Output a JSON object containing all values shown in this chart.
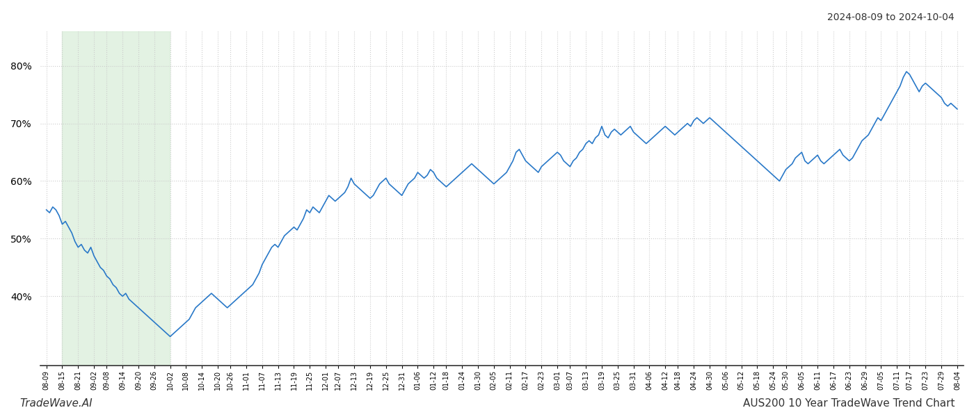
{
  "title_top_right": "2024-08-09 to 2024-10-04",
  "title_bottom_right": "AUS200 10 Year TradeWave Trend Chart",
  "title_bottom_left": "TradeWave.AI",
  "background_color": "#ffffff",
  "line_color": "#2878c8",
  "line_width": 1.2,
  "shaded_region_color": "#d4ecd4",
  "shaded_region_alpha": 0.65,
  "ylim": [
    28,
    86
  ],
  "yticks": [
    40,
    50,
    60,
    70,
    80
  ],
  "grid_color": "#cccccc",
  "grid_style": ":",
  "x_labels": [
    "08-09",
    "08-15",
    "08-21",
    "09-02",
    "09-08",
    "09-14",
    "09-20",
    "09-26",
    "10-02",
    "10-08",
    "10-14",
    "10-20",
    "10-26",
    "11-01",
    "11-07",
    "11-13",
    "11-19",
    "11-25",
    "12-01",
    "12-07",
    "12-13",
    "12-19",
    "12-25",
    "12-31",
    "01-06",
    "01-12",
    "01-18",
    "01-24",
    "01-30",
    "02-05",
    "02-11",
    "02-17",
    "02-23",
    "03-01",
    "03-07",
    "03-13",
    "03-19",
    "03-25",
    "03-31",
    "04-06",
    "04-12",
    "04-18",
    "04-24",
    "04-30",
    "05-06",
    "05-12",
    "05-18",
    "05-24",
    "05-30",
    "06-05",
    "06-11",
    "06-17",
    "06-23",
    "06-29",
    "07-05",
    "07-11",
    "07-17",
    "07-23",
    "07-29",
    "08-04"
  ],
  "shaded_start_label": "08-15",
  "shaded_end_label": "10-02",
  "values": [
    55.0,
    54.5,
    55.5,
    55.0,
    54.0,
    52.5,
    53.0,
    52.0,
    51.0,
    49.5,
    48.5,
    49.0,
    48.0,
    47.5,
    48.5,
    47.0,
    46.0,
    45.0,
    44.5,
    43.5,
    43.0,
    42.0,
    41.5,
    40.5,
    40.0,
    40.5,
    39.5,
    39.0,
    38.5,
    38.0,
    37.5,
    37.0,
    36.5,
    36.0,
    35.5,
    35.0,
    34.5,
    34.0,
    33.5,
    33.0,
    33.5,
    34.0,
    34.5,
    35.0,
    35.5,
    36.0,
    37.0,
    38.0,
    38.5,
    39.0,
    39.5,
    40.0,
    40.5,
    40.0,
    39.5,
    39.0,
    38.5,
    38.0,
    38.5,
    39.0,
    39.5,
    40.0,
    40.5,
    41.0,
    41.5,
    42.0,
    43.0,
    44.0,
    45.5,
    46.5,
    47.5,
    48.5,
    49.0,
    48.5,
    49.5,
    50.5,
    51.0,
    51.5,
    52.0,
    51.5,
    52.5,
    53.5,
    55.0,
    54.5,
    55.5,
    55.0,
    54.5,
    55.5,
    56.5,
    57.5,
    57.0,
    56.5,
    57.0,
    57.5,
    58.0,
    59.0,
    60.5,
    59.5,
    59.0,
    58.5,
    58.0,
    57.5,
    57.0,
    57.5,
    58.5,
    59.5,
    60.0,
    60.5,
    59.5,
    59.0,
    58.5,
    58.0,
    57.5,
    58.5,
    59.5,
    60.0,
    60.5,
    61.5,
    61.0,
    60.5,
    61.0,
    62.0,
    61.5,
    60.5,
    60.0,
    59.5,
    59.0,
    59.5,
    60.0,
    60.5,
    61.0,
    61.5,
    62.0,
    62.5,
    63.0,
    62.5,
    62.0,
    61.5,
    61.0,
    60.5,
    60.0,
    59.5,
    60.0,
    60.5,
    61.0,
    61.5,
    62.5,
    63.5,
    65.0,
    65.5,
    64.5,
    63.5,
    63.0,
    62.5,
    62.0,
    61.5,
    62.5,
    63.0,
    63.5,
    64.0,
    64.5,
    65.0,
    64.5,
    63.5,
    63.0,
    62.5,
    63.5,
    64.0,
    65.0,
    65.5,
    66.5,
    67.0,
    66.5,
    67.5,
    68.0,
    69.5,
    68.0,
    67.5,
    68.5,
    69.0,
    68.5,
    68.0,
    68.5,
    69.0,
    69.5,
    68.5,
    68.0,
    67.5,
    67.0,
    66.5,
    67.0,
    67.5,
    68.0,
    68.5,
    69.0,
    69.5,
    69.0,
    68.5,
    68.0,
    68.5,
    69.0,
    69.5,
    70.0,
    69.5,
    70.5,
    71.0,
    70.5,
    70.0,
    70.5,
    71.0,
    70.5,
    70.0,
    69.5,
    69.0,
    68.5,
    68.0,
    67.5,
    67.0,
    66.5,
    66.0,
    65.5,
    65.0,
    64.5,
    64.0,
    63.5,
    63.0,
    62.5,
    62.0,
    61.5,
    61.0,
    60.5,
    60.0,
    61.0,
    62.0,
    62.5,
    63.0,
    64.0,
    64.5,
    65.0,
    63.5,
    63.0,
    63.5,
    64.0,
    64.5,
    63.5,
    63.0,
    63.5,
    64.0,
    64.5,
    65.0,
    65.5,
    64.5,
    64.0,
    63.5,
    64.0,
    65.0,
    66.0,
    67.0,
    67.5,
    68.0,
    69.0,
    70.0,
    71.0,
    70.5,
    71.5,
    72.5,
    73.5,
    74.5,
    75.5,
    76.5,
    78.0,
    79.0,
    78.5,
    77.5,
    76.5,
    75.5,
    76.5,
    77.0,
    76.5,
    76.0,
    75.5,
    75.0,
    74.5,
    73.5,
    73.0,
    73.5,
    73.0,
    72.5
  ]
}
